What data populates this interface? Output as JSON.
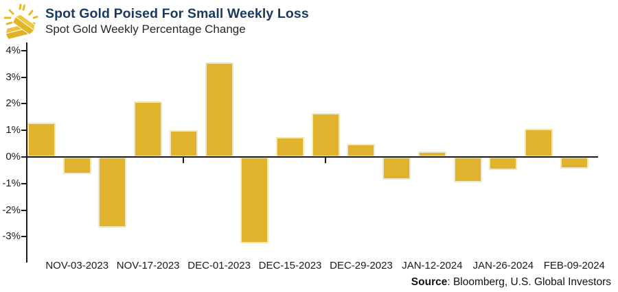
{
  "header": {
    "title": "Spot Gold Poised For Small Weekly Loss",
    "subtitle": "Spot Gold Weekly Percentage Change",
    "icon": "gold-bars-icon"
  },
  "footer": {
    "source_label": "Source",
    "source_text": ": Bloomberg, U.S. Global Investors"
  },
  "chart_data": {
    "type": "bar",
    "title": "Spot Gold Weekly Percentage Change",
    "bar_color": "#dfb32d",
    "values": [
      1.3,
      -0.65,
      -2.65,
      2.1,
      1.0,
      3.55,
      -3.25,
      0.75,
      1.65,
      0.5,
      -0.85,
      0.2,
      -0.95,
      -0.5,
      1.05,
      -0.45
    ],
    "x_tick_labels": [
      "NOV-03-2023",
      "NOV-17-2023",
      "DEC-01-2023",
      "DEC-15-2023",
      "DEC-29-2023",
      "JAN-12-2024",
      "JAN-26-2024",
      "FEB-09-2024"
    ],
    "x_tick_label_bar_indexes": [
      1,
      3,
      5,
      7,
      9,
      11,
      13,
      15
    ],
    "y_tick_labels": [
      "4%",
      "3%",
      "2%",
      "1%",
      "0%",
      "-1%",
      "-2%",
      "-3%"
    ],
    "y_tick_values": [
      4,
      3,
      2,
      1,
      0,
      -1,
      -2,
      -3
    ],
    "ylim": [
      -3.9,
      4.3
    ],
    "grid": false,
    "legend": false
  }
}
